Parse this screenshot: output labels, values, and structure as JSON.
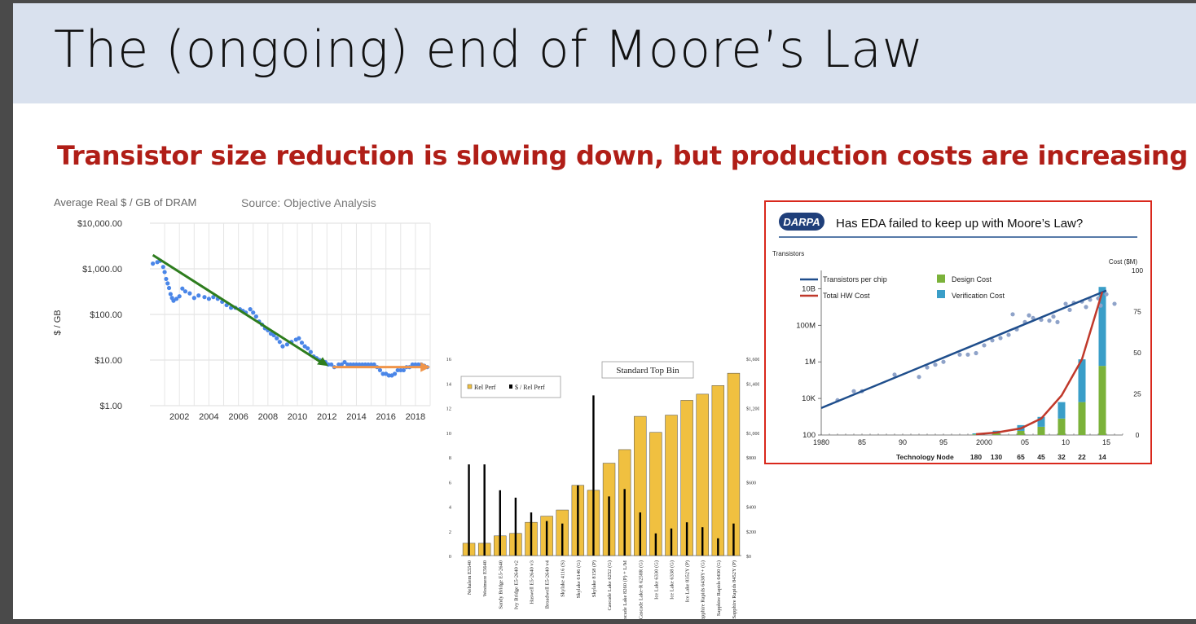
{
  "slide": {
    "title": "The (ongoing) end of Moore’s Law",
    "subtitle": "Transistor size reduction is slowing down, but production costs are increasing"
  },
  "chart_data": [
    {
      "type": "scatter",
      "title": "Average Real $ / GB of DRAM",
      "source": "Source: Objective Analysis",
      "ylabel": "$ / GB",
      "yscale": "log",
      "ylim": [
        1,
        10000
      ],
      "xlim": [
        2000,
        2019
      ],
      "y_ticks": [
        "$1.00",
        "$10.00",
        "$100.00",
        "$1,000.00",
        "$10,000.00"
      ],
      "x_ticks": [
        "2002",
        "2004",
        "2006",
        "2008",
        "2010",
        "2012",
        "2014",
        "2016",
        "2018"
      ],
      "grid": true,
      "colors": {
        "points": "#4a86e8",
        "trend_down": "#2e7d1e",
        "trend_flat": "#f0954a"
      },
      "series": [
        {
          "x": [
            2000.2,
            2000.5,
            2000.7,
            2000.9,
            2001.0,
            2001.1,
            2001.2,
            2001.3,
            2001.4,
            2001.5,
            2001.6,
            2001.8,
            2002.0,
            2002.2,
            2002.4,
            2002.7,
            2003.0,
            2003.3,
            2003.7,
            2004.0,
            2004.3,
            2004.6,
            2004.9,
            2005.2,
            2005.5,
            2005.8,
            2006.1,
            2006.3,
            2006.5,
            2006.8,
            2007.0,
            2007.2,
            2007.4,
            2007.6,
            2007.8,
            2008.0,
            2008.2,
            2008.4,
            2008.6,
            2008.8,
            2009.0,
            2009.3,
            2009.6,
            2009.9,
            2010.1,
            2010.3,
            2010.5,
            2010.7,
            2010.9,
            2011.1,
            2011.3,
            2011.5,
            2011.7,
            2011.9,
            2012.1,
            2012.3,
            2012.5,
            2012.8,
            2013.0,
            2013.2,
            2013.4,
            2013.6,
            2013.8,
            2014.0,
            2014.2,
            2014.4,
            2014.6,
            2014.8,
            2015.0,
            2015.2,
            2015.4,
            2015.6,
            2015.8,
            2016.0,
            2016.2,
            2016.4,
            2016.6,
            2016.8,
            2017.0,
            2017.2,
            2017.4,
            2017.6,
            2017.8,
            2018.0,
            2018.2,
            2018.4,
            2018.6,
            2018.8
          ],
          "y": [
            1300,
            1400,
            1500,
            1100,
            850,
            600,
            480,
            380,
            280,
            230,
            200,
            220,
            250,
            370,
            320,
            290,
            230,
            260,
            240,
            220,
            240,
            220,
            190,
            160,
            140,
            140,
            130,
            120,
            110,
            130,
            110,
            90,
            70,
            60,
            50,
            45,
            38,
            35,
            30,
            25,
            20,
            22,
            25,
            28,
            30,
            24,
            20,
            18,
            15,
            12,
            11,
            10,
            9,
            9,
            8,
            8,
            7,
            8,
            8,
            9,
            8,
            8,
            8,
            8,
            8,
            8,
            8,
            8,
            8,
            8,
            7,
            6,
            5,
            5,
            4.6,
            4.6,
            5,
            6,
            6,
            6,
            7,
            7,
            8,
            8,
            8,
            8,
            7.5,
            7
          ],
          "name": ""
        }
      ]
    },
    {
      "type": "bar",
      "title": "Standard Top Bin",
      "legend": [
        "Rel Perf",
        "$ / Rel Perf"
      ],
      "legend_placement": "top-left",
      "categories": [
        "Nehalem E5540",
        "Westmere E5640",
        "Sandy Bridge E5-2640",
        "Ivy Bridge E5-2640 v2",
        "Haswell E5-2640 v3",
        "Broadwell E5-2640 v4",
        "Skylake 4116 (S)",
        "Skylake 6146 (G)",
        "Skylake 8158 (P)",
        "Cascade Lake 6252 (G)",
        "Cascade Lake 8260 (P) + L/M",
        "Cascade Lake-R 6258R (G)",
        "Ice Lake 6330 (G)",
        "Ice Lake 6338 (G)",
        "Ice Lake 8352Y (P)",
        "Sapphire Rapids 6438Y+ (G)",
        "Sapphire Rapids 6430 (G)",
        "Sapphire Rapids 8452Y (P)"
      ],
      "left_axis": {
        "ylim": [
          0,
          16
        ],
        "ticks": [
          "0",
          "2",
          "4",
          "6",
          "8",
          "10",
          "12",
          "14",
          "16"
        ]
      },
      "right_axis": {
        "ylim": [
          0,
          1600
        ],
        "ticks": [
          "$0",
          "$200",
          "$400",
          "$600",
          "$800",
          "$1,000",
          "$1,200",
          "$1,400",
          "$1,600"
        ]
      },
      "colors": {
        "rel_perf": "#f0c040",
        "dollar_per_perf": "#000000"
      },
      "series": [
        {
          "name": "Rel Perf",
          "axis": "left",
          "values": [
            1.0,
            1.0,
            1.6,
            1.8,
            2.7,
            3.2,
            3.7,
            5.7,
            5.3,
            7.5,
            8.6,
            11.3,
            10.0,
            11.4,
            12.6,
            13.1,
            13.8,
            14.8
          ]
        },
        {
          "name": "$ / Rel Perf",
          "axis": "right",
          "values": [
            740,
            740,
            530,
            470,
            350,
            280,
            260,
            570,
            1300,
            480,
            540,
            350,
            180,
            220,
            270,
            230,
            140,
            260
          ]
        }
      ]
    },
    {
      "type": "line",
      "title": "Has EDA failed to keep up with Moore’s Law?",
      "logo": "DARPA",
      "left_axis": {
        "label": "Transistors",
        "scale": "log",
        "ylim": [
          100,
          100000000000
        ],
        "ticks": [
          "100",
          "10K",
          "1M",
          "100M",
          "10B"
        ]
      },
      "right_axis": {
        "label": "Cost ($M)",
        "ylim": [
          0,
          100
        ],
        "ticks": [
          "0",
          "25",
          "50",
          "75",
          "100"
        ]
      },
      "xlim": [
        1980,
        2017
      ],
      "x_ticks": [
        "1980",
        "85",
        "90",
        "95",
        "2000",
        "05",
        "10",
        "15"
      ],
      "node_label": "Technology Node",
      "nodes": [
        {
          "x": 1999,
          "label": "180"
        },
        {
          "x": 2001.5,
          "label": "130"
        },
        {
          "x": 2004.5,
          "label": "65"
        },
        {
          "x": 2007,
          "label": "45"
        },
        {
          "x": 2009.5,
          "label": "32"
        },
        {
          "x": 2012,
          "label": "22"
        },
        {
          "x": 2014.5,
          "label": "14"
        }
      ],
      "legend": [
        "Transistors per chip",
        "Total HW Cost",
        "Design Cost",
        "Verification Cost"
      ],
      "colors": {
        "transistors": "#1f4e8c",
        "hw_cost": "#c0392b",
        "design": "#7bb23a",
        "verification": "#3a9ec8",
        "points": "#8fa3c9"
      },
      "series": [
        {
          "name": "Transistors per chip",
          "axis": "left",
          "x": [
            1980,
            2015
          ],
          "y": [
            3000,
            8000000000
          ]
        },
        {
          "name": "Total HW Cost",
          "axis": "right",
          "x": [
            1999,
            2001.5,
            2004.5,
            2007,
            2009.5,
            2012,
            2014.5
          ],
          "y": [
            0.5,
            1.5,
            4,
            10,
            24,
            46,
            87
          ]
        },
        {
          "name": "Design Cost",
          "axis": "right",
          "x": [
            1999,
            2001.5,
            2004.5,
            2007,
            2009.5,
            2012,
            2014.5
          ],
          "y": [
            0.4,
            1.0,
            2.5,
            5,
            10,
            20,
            42
          ]
        },
        {
          "name": "Verification Cost",
          "axis": "right",
          "x": [
            1999,
            2001.5,
            2004.5,
            2007,
            2009.5,
            2012,
            2014.5
          ],
          "y": [
            0.6,
            1.6,
            3.5,
            6,
            10,
            26,
            48
          ]
        },
        {
          "name": "",
          "type": "scatter",
          "axis": "left",
          "x": [
            1982,
            1984,
            1985,
            1989,
            1992,
            1993,
            1994,
            1995,
            1997,
            1998,
            1999,
            2000,
            2001,
            2002,
            2003,
            2004,
            2005,
            2006,
            2007,
            2008,
            2009,
            2010,
            2011,
            2012,
            2013,
            2014,
            2015,
            2016,
            2003.5,
            2005.5,
            2008.5,
            2010.5,
            2012.5,
            2014.3
          ],
          "y": [
            8000,
            25000,
            25000,
            200000,
            150000,
            500000,
            700000,
            1000000,
            2500000,
            2500000,
            3000000,
            8000000,
            15000000,
            20000000,
            30000000,
            60000000,
            150000000,
            250000000,
            200000000,
            180000000,
            150000000,
            1500000000,
            1700000000,
            2000000000,
            2500000000,
            3000000000,
            5000000000,
            1500000000,
            400000000,
            350000000,
            300000000,
            700000000,
            1000000000,
            1200000000
          ]
        }
      ]
    }
  ]
}
